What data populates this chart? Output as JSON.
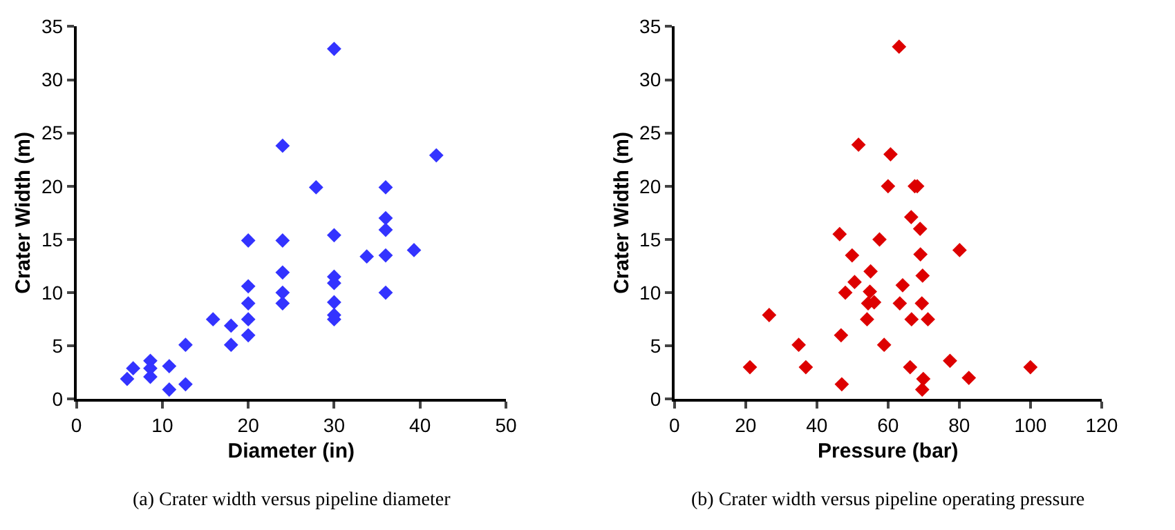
{
  "chart_data": [
    {
      "type": "scatter",
      "xlabel": "Diameter (in)",
      "ylabel": "Crater Width (m)",
      "annotations": [
        "(a) Crater width versus pipeline diameter"
      ],
      "marker": "diamond",
      "x": [
        5.9,
        6.6,
        8.6,
        8.6,
        8.6,
        10.8,
        10.8,
        12.7,
        12.7,
        15.9,
        18,
        18,
        20,
        20,
        20,
        20,
        20,
        24,
        24,
        24,
        24,
        24,
        27.9,
        30,
        30,
        30,
        30,
        30,
        30,
        30,
        33.8,
        36,
        36,
        36,
        36,
        36,
        39.3,
        41.9
      ],
      "series": [
        {
          "color": "#3333ff",
          "values": [
            1.9,
            2.9,
            3.6,
            2.9,
            2.1,
            3.1,
            0.9,
            5.1,
            1.4,
            7.5,
            6.9,
            5.1,
            14.9,
            10.6,
            9.0,
            7.5,
            6.0,
            23.8,
            14.9,
            11.9,
            10.0,
            9.0,
            19.9,
            32.9,
            15.4,
            11.5,
            10.9,
            9.1,
            7.9,
            7.5,
            13.4,
            19.9,
            17.0,
            15.9,
            13.5,
            10.0,
            14.0,
            22.9
          ]
        }
      ],
      "xlim": [
        0,
        50
      ],
      "xticks": [
        0,
        10,
        20,
        30,
        40,
        50
      ],
      "ylim": [
        0,
        35
      ],
      "yticks": [
        0,
        5,
        10,
        15,
        20,
        25,
        30,
        35
      ]
    },
    {
      "type": "scatter",
      "xlabel": "Pressure (bar)",
      "ylabel": "Crater Width (m)",
      "annotations": [
        "(b) Crater width versus pipeline operating pressure"
      ],
      "marker": "diamond",
      "x": [
        21.2,
        26.6,
        34.9,
        36.9,
        46.4,
        46.8,
        47.0,
        48.0,
        49.9,
        50.6,
        51.7,
        54.1,
        54.4,
        54.9,
        55.1,
        56.1,
        57.6,
        58.9,
        60,
        60.7,
        63.1,
        63.3,
        64.1,
        66.2,
        66.5,
        66.6,
        67.5,
        68.2,
        69,
        69.1,
        69.5,
        69.7,
        69.9,
        69.6,
        71.2,
        77.4,
        80.1,
        82.7,
        100
      ],
      "series": [
        {
          "color": "#dd0000",
          "values": [
            3.0,
            7.9,
            5.1,
            3.0,
            15.5,
            6.0,
            1.4,
            10.0,
            13.5,
            11.0,
            23.9,
            7.5,
            9.0,
            10.1,
            12.0,
            9.1,
            15.0,
            5.1,
            20.0,
            23.0,
            33.1,
            9.0,
            10.7,
            3.0,
            17.1,
            7.5,
            20.0,
            20.0,
            16.0,
            13.6,
            9.0,
            11.6,
            1.9,
            0.9,
            7.5,
            3.6,
            14.0,
            2.0,
            3.0
          ]
        }
      ],
      "xlim": [
        0,
        120
      ],
      "xticks": [
        0,
        20,
        40,
        60,
        80,
        100,
        120
      ],
      "ylim": [
        0,
        35
      ],
      "yticks": [
        0,
        5,
        10,
        15,
        20,
        25,
        30,
        35
      ]
    }
  ]
}
